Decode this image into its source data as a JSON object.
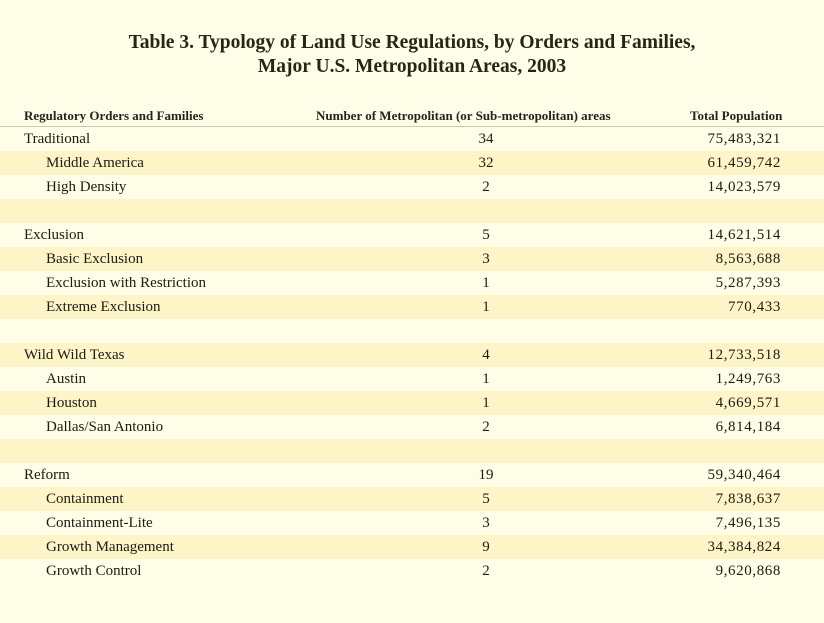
{
  "title": {
    "line1": "Table 3. Typology of Land Use Regulations, by Orders and Families,",
    "line2": "Major U.S. Metropolitan Areas, 2003"
  },
  "table": {
    "headers": [
      "Regulatory Orders and Families",
      "Number of Metropolitan (or Sub-metropolitan) areas",
      "Total Population"
    ],
    "rows": [
      {
        "label": "Traditional",
        "count": "34",
        "population": "75,483,321"
      },
      {
        "label": "Middle America",
        "count": "32",
        "population": "61,459,742"
      },
      {
        "label": "High Density",
        "count": "2",
        "population": "14,023,579"
      },
      {
        "label": "",
        "count": "",
        "population": ""
      },
      {
        "label": "Exclusion",
        "count": "5",
        "population": "14,621,514"
      },
      {
        "label": "Basic Exclusion",
        "count": "3",
        "population": "8,563,688"
      },
      {
        "label": "Exclusion with Restriction",
        "count": "1",
        "population": "5,287,393"
      },
      {
        "label": "Extreme Exclusion",
        "count": "1",
        "population": "770,433"
      },
      {
        "label": "",
        "count": "",
        "population": ""
      },
      {
        "label": "Wild Wild Texas",
        "count": "4",
        "population": "12,733,518"
      },
      {
        "label": "Austin",
        "count": "1",
        "population": "1,249,763"
      },
      {
        "label": "Houston",
        "count": "1",
        "population": "4,669,571"
      },
      {
        "label": "Dallas/San Antonio",
        "count": "2",
        "population": "6,814,184"
      },
      {
        "label": "",
        "count": "",
        "population": ""
      },
      {
        "label": "Reform",
        "count": "19",
        "population": "59,340,464"
      },
      {
        "label": "Containment",
        "count": "5",
        "population": "7,838,637"
      },
      {
        "label": "Containment-Lite",
        "count": "3",
        "population": "7,496,135"
      },
      {
        "label": "Growth Management",
        "count": "9",
        "population": "34,384,824"
      },
      {
        "label": "Growth Control",
        "count": "2",
        "population": "9,620,868"
      }
    ]
  }
}
